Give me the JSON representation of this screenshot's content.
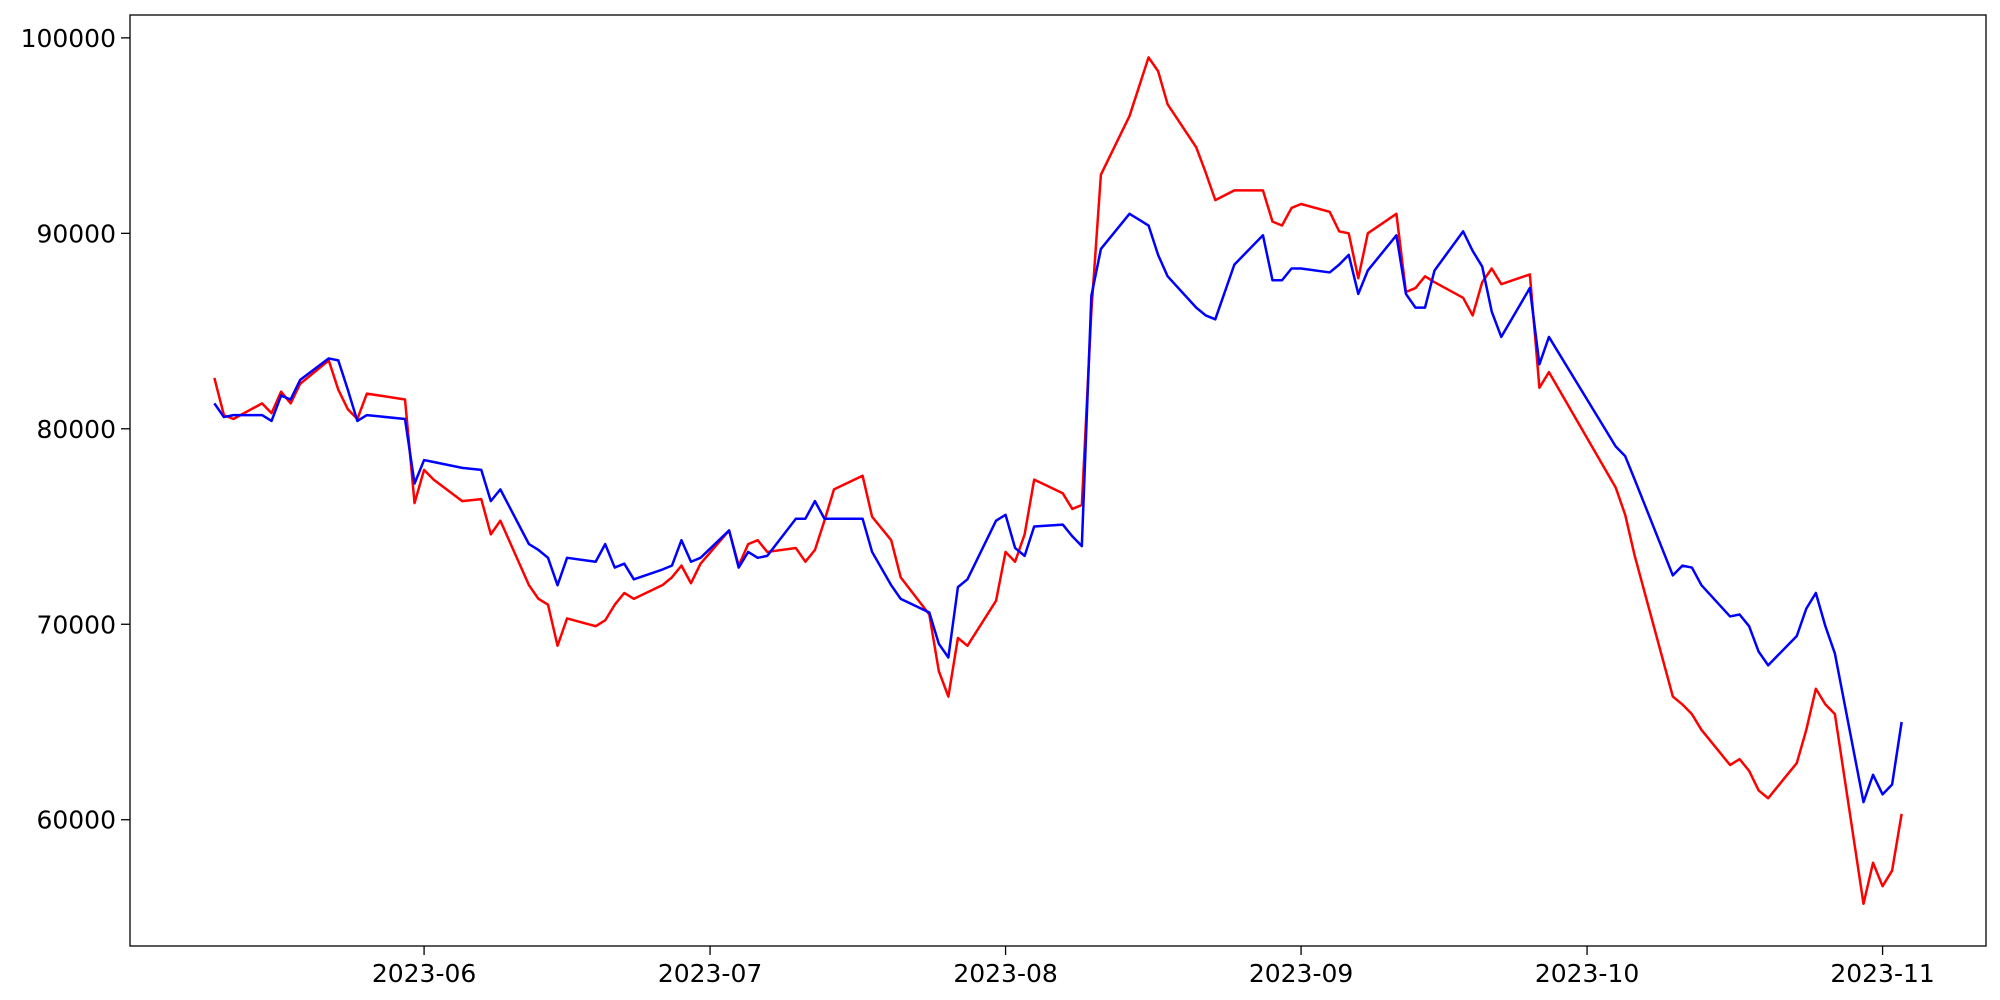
{
  "chart_data": {
    "type": "line",
    "x": [
      130,
      131,
      132,
      135,
      136,
      137,
      138,
      139,
      142,
      143,
      144,
      145,
      146,
      150,
      151,
      152,
      153,
      156,
      158,
      159,
      160,
      163,
      164,
      165,
      166,
      167,
      170,
      171,
      172,
      173,
      174,
      177,
      178,
      179,
      180,
      181,
      184,
      185,
      186,
      187,
      188,
      191,
      192,
      193,
      194,
      195,
      198,
      199,
      201,
      202,
      205,
      206,
      207,
      208,
      209,
      212,
      213,
      214,
      215,
      216,
      219,
      220,
      221,
      222,
      223,
      226,
      228,
      229,
      230,
      233,
      234,
      235,
      237,
      240,
      241,
      242,
      243,
      244,
      247,
      248,
      249,
      250,
      251,
      254,
      255,
      256,
      257,
      258,
      261,
      262,
      263,
      264,
      265,
      268,
      269,
      270,
      277,
      278,
      279,
      283,
      284,
      285,
      286,
      289,
      290,
      291,
      292,
      293,
      296,
      297,
      298,
      299,
      300,
      303,
      304,
      305,
      306,
      307
    ],
    "series": [
      {
        "color": "red",
        "values": [
          82600,
          80700,
          80500,
          81300,
          80800,
          81900,
          81300,
          82300,
          83500,
          82000,
          81000,
          80500,
          81800,
          81500,
          76200,
          77900,
          77400,
          76300,
          76400,
          74600,
          75300,
          72000,
          71300,
          71000,
          68900,
          70300,
          69900,
          70200,
          71000,
          71600,
          71300,
          72000,
          72400,
          73000,
          72100,
          73100,
          74800,
          73000,
          74100,
          74300,
          73700,
          73900,
          73200,
          73800,
          75300,
          76900,
          77600,
          75500,
          74300,
          72400,
          70500,
          67600,
          66300,
          69300,
          68900,
          71200,
          73700,
          73200,
          74600,
          77400,
          76700,
          75900,
          76100,
          86000,
          93000,
          96000,
          99000,
          98300,
          96600,
          94400,
          93100,
          91700,
          92200,
          92200,
          90600,
          90400,
          91300,
          91500,
          91100,
          90100,
          90000,
          87700,
          90000,
          91000,
          87000,
          87200,
          87800,
          87500,
          86700,
          85800,
          87500,
          88200,
          87400,
          87900,
          82100,
          82900,
          77000,
          75600,
          73500,
          66300,
          65900,
          65400,
          64600,
          62800,
          63100,
          62500,
          61500,
          61100,
          62900,
          64600,
          66700,
          65900,
          65400,
          55700,
          57800,
          56600,
          57400,
          60300
        ]
      },
      {
        "color": "blue",
        "values": [
          81300,
          80600,
          80700,
          80700,
          80400,
          81700,
          81500,
          82500,
          83600,
          83500,
          82000,
          80400,
          80700,
          80500,
          77200,
          78400,
          78300,
          78000,
          77900,
          76300,
          76900,
          74100,
          73800,
          73400,
          72000,
          73400,
          73200,
          74100,
          72900,
          73100,
          72300,
          72800,
          73000,
          74300,
          73200,
          73400,
          74800,
          72900,
          73700,
          73400,
          73500,
          75400,
          75400,
          76300,
          75400,
          75400,
          75400,
          73700,
          72000,
          71300,
          70600,
          69000,
          68300,
          71900,
          72300,
          75300,
          75600,
          73900,
          73500,
          75000,
          75100,
          74500,
          74000,
          86800,
          89200,
          91000,
          90400,
          88900,
          87800,
          86200,
          85800,
          85600,
          88400,
          89900,
          87600,
          87600,
          88200,
          88200,
          88000,
          88400,
          88900,
          86900,
          88100,
          89900,
          86900,
          86200,
          86200,
          88100,
          90100,
          89100,
          88300,
          86000,
          84700,
          87200,
          83300,
          84700,
          79100,
          78600,
          77400,
          72500,
          73000,
          72900,
          72000,
          70400,
          70500,
          69900,
          68600,
          67900,
          69400,
          70800,
          71600,
          69900,
          68500,
          60900,
          62300,
          61300,
          61800,
          65000
        ]
      }
    ],
    "xlim": [
      121.15,
      315.85
    ],
    "xticks": [
      {
        "value": 152,
        "label": "2023-06"
      },
      {
        "value": 182,
        "label": "2023-07"
      },
      {
        "value": 213,
        "label": "2023-08"
      },
      {
        "value": 244,
        "label": "2023-09"
      },
      {
        "value": 274,
        "label": "2023-10"
      },
      {
        "value": 305,
        "label": "2023-11"
      }
    ],
    "ylim": [
      53540,
      101170
    ],
    "yticks": [
      60000,
      70000,
      80000,
      90000,
      100000
    ]
  }
}
